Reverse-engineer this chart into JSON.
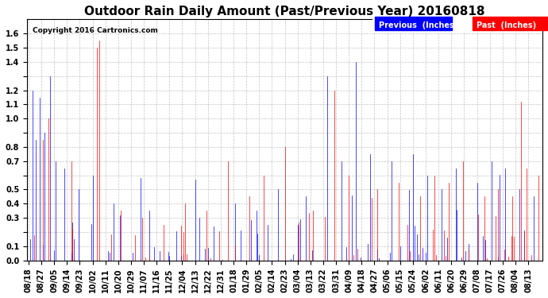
{
  "title": "Outdoor Rain Daily Amount (Past/Previous Year) 20160818",
  "copyright": "Copyright 2016 Cartronics.com",
  "legend_previous": "Previous  (Inches)",
  "legend_past": "Past  (Inches)",
  "color_previous": "blue",
  "color_past": "red",
  "ylim": [
    0.0,
    1.7
  ],
  "yticks": [
    0.0,
    0.1,
    0.2,
    0.3,
    0.4,
    0.5,
    0.6,
    0.7,
    0.8,
    0.9,
    1.0,
    1.1,
    1.2,
    1.3,
    1.4,
    1.5,
    1.6
  ],
  "ytick_labels": [
    "0.0",
    "0.1",
    "",
    "0.3",
    "0.4",
    "0.5",
    "",
    "0.7",
    "0.8",
    "",
    "1.0",
    "1.1",
    "1.2",
    "",
    "1.4",
    "1.5",
    "1.6"
  ],
  "background_color": "#ffffff",
  "grid_color": "#aaaaaa",
  "title_fontsize": 11,
  "tick_fontsize": 7
}
